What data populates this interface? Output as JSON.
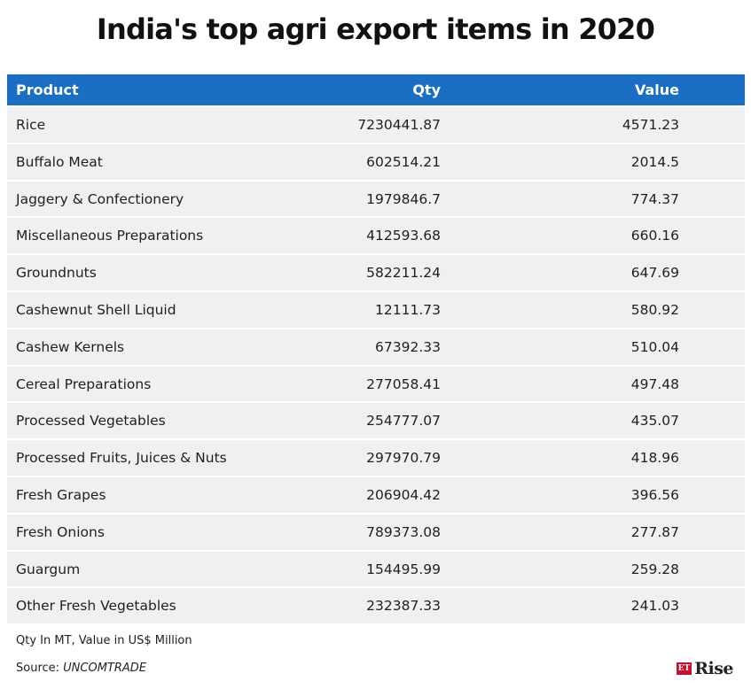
{
  "title": "India's top agri export items in 2020",
  "table": {
    "headers": {
      "product": "Product",
      "qty": "Qty",
      "value": "Value"
    },
    "rows": [
      {
        "product": "Rice",
        "qty": "7230441.87",
        "value": "4571.23"
      },
      {
        "product": "Buffalo Meat",
        "qty": "602514.21",
        "value": "2014.5"
      },
      {
        "product": "Jaggery & Confectionery",
        "qty": "1979846.7",
        "value": "774.37"
      },
      {
        "product": "Miscellaneous Preparations",
        "qty": "412593.68",
        "value": "660.16"
      },
      {
        "product": "Groundnuts",
        "qty": "582211.24",
        "value": "647.69"
      },
      {
        "product": "Cashewnut Shell Liquid",
        "qty": "12111.73",
        "value": "580.92"
      },
      {
        "product": "Cashew Kernels",
        "qty": "67392.33",
        "value": "510.04"
      },
      {
        "product": "Cereal Preparations",
        "qty": "277058.41",
        "value": "497.48"
      },
      {
        "product": "Processed Vegetables",
        "qty": "254777.07",
        "value": "435.07"
      },
      {
        "product": "Processed Fruits, Juices & Nuts",
        "qty": "297970.79",
        "value": "418.96"
      },
      {
        "product": "Fresh Grapes",
        "qty": "206904.42",
        "value": "396.56"
      },
      {
        "product": "Fresh Onions",
        "qty": "789373.08",
        "value": "277.87"
      },
      {
        "product": "Guargum",
        "qty": "154495.99",
        "value": "259.28"
      },
      {
        "product": "Other Fresh Vegetables",
        "qty": "232387.33",
        "value": "241.03"
      }
    ]
  },
  "footer": {
    "note": "Qty In MT, Value in US$ Million",
    "source_label": "Source: ",
    "source_name": "UNCOMTRADE"
  },
  "logo": {
    "badge": "ET",
    "text": "Rise"
  },
  "colors": {
    "header_bg": "#1a6fc4",
    "row_bg": "#f0f0f0",
    "logo_badge": "#c8102e"
  }
}
